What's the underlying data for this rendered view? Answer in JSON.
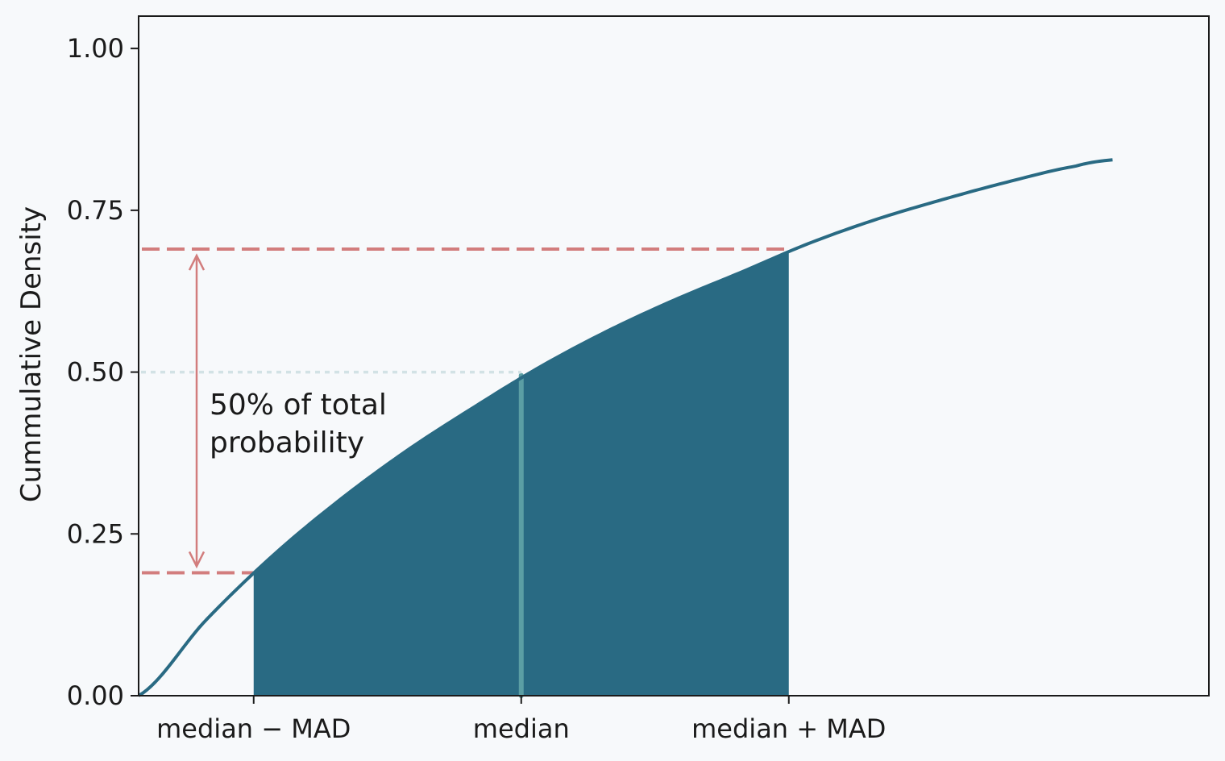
{
  "chart_data": {
    "type": "area",
    "title": "",
    "ylabel": "Cummulative Density",
    "xlabel": "",
    "ylim": [
      0,
      1.05
    ],
    "y_ticks": [
      {
        "value": 0.0,
        "label": "0.00"
      },
      {
        "value": 0.25,
        "label": "0.25"
      },
      {
        "value": 0.5,
        "label": "0.50"
      },
      {
        "value": 0.75,
        "label": "0.75"
      },
      {
        "value": 1.0,
        "label": "1.00"
      }
    ],
    "x_domain": [
      0,
      4
    ],
    "x_categories": [
      {
        "x": 0.43,
        "label": "median − MAD"
      },
      {
        "x": 1.43,
        "label": "median"
      },
      {
        "x": 2.43,
        "label": "median + MAD"
      }
    ],
    "series": [
      {
        "x": [
          0,
          0.25,
          0.5,
          0.75,
          1.0,
          1.25,
          1.5,
          1.75,
          2.0,
          2.25,
          2.5,
          2.75,
          3.0,
          3.25,
          3.5,
          3.64
        ],
        "y": [
          0,
          0.116,
          0.216,
          0.302,
          0.378,
          0.445,
          0.508,
          0.563,
          0.611,
          0.654,
          0.698,
          0.735,
          0.766,
          0.794,
          0.818,
          0.828
        ]
      }
    ],
    "shaded_region": {
      "from": 0.43,
      "to": 2.43,
      "color": "#296a83"
    },
    "median": {
      "x": 1.43,
      "y": 0.5
    },
    "reference_lines": {
      "lower": 0.19,
      "upper": 0.69,
      "median": 0.5
    },
    "annotation": {
      "line1": "50% of total",
      "line2": "probability"
    },
    "grid": false,
    "colors": {
      "line": "#296a83",
      "fill": "#296a83",
      "median_line": "#5b9ea4",
      "dashed": "#d27d7d",
      "median_dotted": "#d2e2e5",
      "axis": "#1a1a1a"
    }
  }
}
